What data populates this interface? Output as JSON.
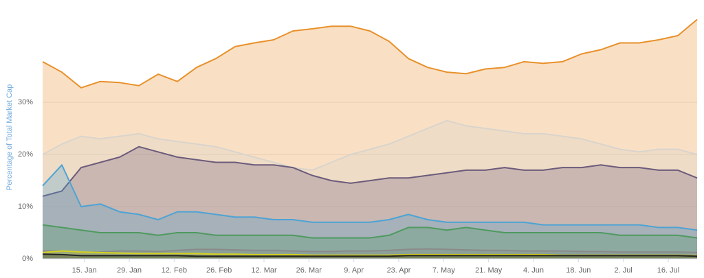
{
  "chart_data": {
    "type": "area",
    "y_label": "Percentage of Total Market Cap",
    "x": [
      1,
      7,
      13,
      19,
      25,
      31,
      37,
      43,
      49,
      55,
      61,
      67,
      73,
      79,
      85,
      91,
      97,
      103,
      109,
      115,
      121,
      127,
      133,
      139,
      145,
      151,
      157,
      163,
      169,
      175,
      181,
      187,
      193,
      199,
      205
    ],
    "xlim": [
      1,
      205
    ],
    "xticks": [
      {
        "value": 14,
        "label": "15. Jan"
      },
      {
        "value": 28,
        "label": "29. Jan"
      },
      {
        "value": 42,
        "label": "12. Feb"
      },
      {
        "value": 56,
        "label": "26. Feb"
      },
      {
        "value": 70,
        "label": "12. Mar"
      },
      {
        "value": 84,
        "label": "26. Mar"
      },
      {
        "value": 98,
        "label": "9. Apr"
      },
      {
        "value": 112,
        "label": "23. Apr"
      },
      {
        "value": 126,
        "label": "7. May"
      },
      {
        "value": 140,
        "label": "21. May"
      },
      {
        "value": 154,
        "label": "4. Jun"
      },
      {
        "value": 168,
        "label": "18. Jun"
      },
      {
        "value": 182,
        "label": "2. Jul"
      },
      {
        "value": 196,
        "label": "16. Jul"
      }
    ],
    "ylim": [
      0,
      47
    ],
    "yticks": [
      {
        "value": 0,
        "label": "0%"
      },
      {
        "value": 10,
        "label": "10%"
      },
      {
        "value": 20,
        "label": "20%"
      },
      {
        "value": 30,
        "label": "30%"
      }
    ],
    "grid": true,
    "series": [
      {
        "color": "#e8902b",
        "values": [
          37.8,
          35.8,
          32.8,
          34,
          33.8,
          33.2,
          35.4,
          34,
          36.7,
          38.4,
          40.7,
          41.4,
          42,
          43.7,
          44.1,
          44.6,
          44.6,
          43.7,
          41.7,
          38.4,
          36.7,
          35.8,
          35.5,
          36.4,
          36.7,
          37.8,
          37.5,
          37.8,
          39.3,
          40.1,
          41.4,
          41.4,
          42,
          42.8,
          45.9
        ]
      },
      {
        "color": "#d9d4cc",
        "values": [
          20,
          22,
          23.5,
          23,
          23.5,
          24,
          23,
          22.5,
          22,
          21.5,
          20.5,
          19.5,
          18.5,
          17.5,
          17,
          18.5,
          20,
          21,
          22,
          23.5,
          25,
          26.5,
          25.5,
          25,
          24.5,
          24,
          24,
          23.5,
          23,
          22,
          21,
          20.5,
          21,
          21,
          20
        ]
      },
      {
        "color": "#6b5b7b",
        "values": [
          12,
          13,
          17.5,
          18.5,
          19.5,
          21.5,
          20.5,
          19.5,
          19,
          18.5,
          18.5,
          18,
          18,
          17.5,
          16,
          15,
          14.5,
          15,
          15.5,
          15.5,
          16,
          16.5,
          17,
          17,
          17.5,
          17,
          17,
          17.5,
          17.5,
          18,
          17.5,
          17.5,
          17,
          17,
          15.5
        ]
      },
      {
        "color": "#4da3d4",
        "values": [
          14,
          18,
          10,
          10.5,
          9,
          8.5,
          7.5,
          9,
          9,
          8.5,
          8,
          8,
          7.5,
          7.5,
          7,
          7,
          7,
          7,
          7.5,
          8.5,
          7.5,
          7,
          7,
          7,
          7,
          7,
          6.5,
          6.5,
          6.5,
          6.5,
          6.5,
          6.5,
          6,
          6,
          5.5
        ]
      },
      {
        "color": "#4e9a5f",
        "values": [
          6.5,
          6,
          5.5,
          5,
          5,
          5,
          4.5,
          5,
          5,
          4.5,
          4.5,
          4.5,
          4.5,
          4.5,
          4,
          4,
          4,
          4,
          4.5,
          6,
          6,
          5.5,
          6,
          5.5,
          5,
          5,
          5,
          5,
          5,
          5,
          4.5,
          4.5,
          4.5,
          4.5,
          4
        ]
      },
      {
        "color": "#8a8a8a",
        "values": [
          1.5,
          1.5,
          1.2,
          1.3,
          1.5,
          1.5,
          1.4,
          1.6,
          1.8,
          1.8,
          1.7,
          1.6,
          1.6,
          1.5,
          1.4,
          1.4,
          1.5,
          1.5,
          1.6,
          1.8,
          1.9,
          1.8,
          1.7,
          1.6,
          1.6,
          1.5,
          1.5,
          1.5,
          1.4,
          1.4,
          1.3,
          1.3,
          1.3,
          1.3,
          1.2
        ]
      },
      {
        "color": "#d4d020",
        "values": [
          1.2,
          1.5,
          1.3,
          1.2,
          1.1,
          1,
          1,
          1,
          1,
          0.9,
          0.9,
          0.8,
          0.8,
          0.8,
          0.7,
          0.7,
          0.7,
          0.7,
          0.7,
          0.8,
          0.8,
          0.8,
          0.8,
          0.8,
          0.8,
          0.8,
          0.8,
          0.7,
          0.7,
          0.7,
          0.7,
          0.7,
          0.7,
          0.7,
          0.6
        ]
      },
      {
        "color": "#222222",
        "values": [
          0.9,
          0.8,
          0.6,
          0.6,
          0.6,
          0.6,
          0.6,
          0.6,
          0.5,
          0.5,
          0.5,
          0.5,
          0.5,
          0.5,
          0.5,
          0.5,
          0.5,
          0.5,
          0.5,
          0.6,
          0.6,
          0.6,
          0.6,
          0.6,
          0.6,
          0.6,
          0.6,
          0.6,
          0.6,
          0.6,
          0.6,
          0.6,
          0.6,
          0.6,
          0.5
        ]
      }
    ]
  }
}
